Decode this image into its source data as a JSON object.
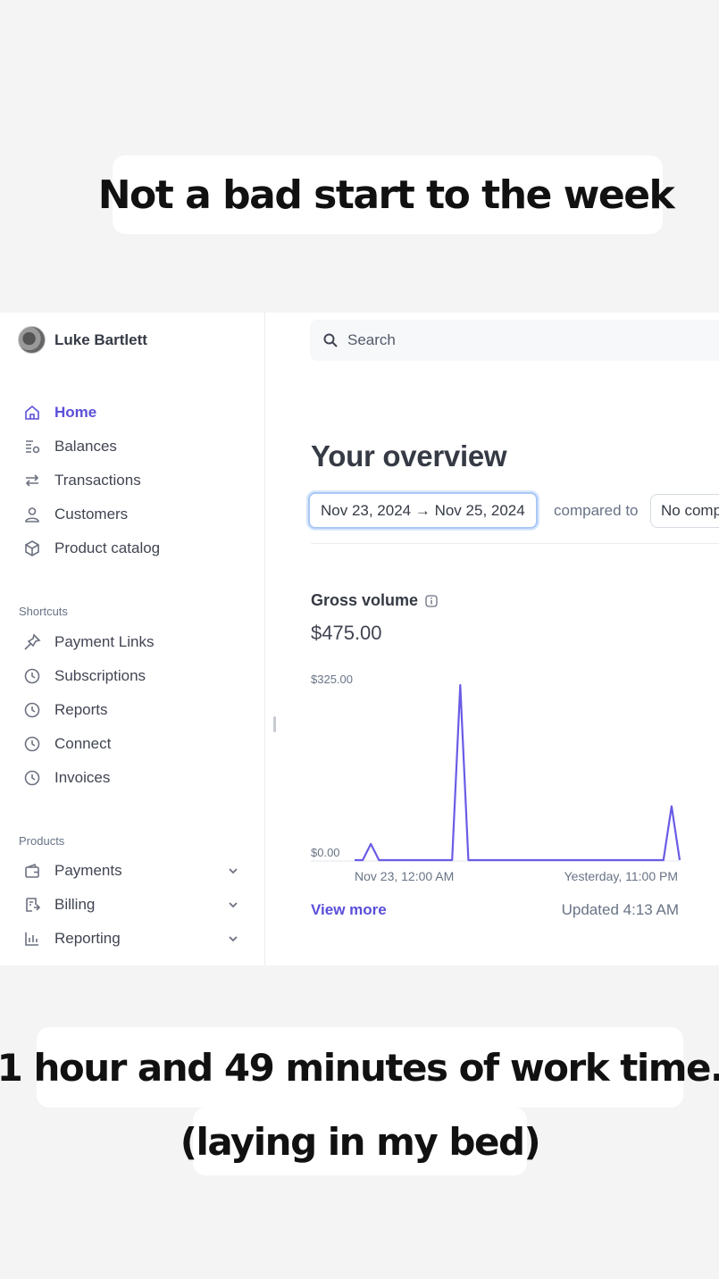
{
  "captions": {
    "top": "Not a bad start to the week",
    "bottom_line1": "1 hour and 49 minutes of work time.",
    "bottom_line2": "(laying in my bed)"
  },
  "sidebar": {
    "user_name": "Luke Bartlett",
    "main_items": [
      {
        "label": "Home",
        "icon": "home-icon",
        "active": true
      },
      {
        "label": "Balances",
        "icon": "balances-icon"
      },
      {
        "label": "Transactions",
        "icon": "transactions-icon"
      },
      {
        "label": "Customers",
        "icon": "customers-icon"
      },
      {
        "label": "Product catalog",
        "icon": "product-catalog-icon"
      }
    ],
    "shortcuts_label": "Shortcuts",
    "shortcuts": [
      {
        "label": "Payment Links",
        "icon": "pin-icon"
      },
      {
        "label": "Subscriptions",
        "icon": "clock-icon"
      },
      {
        "label": "Reports",
        "icon": "clock-icon"
      },
      {
        "label": "Connect",
        "icon": "clock-icon"
      },
      {
        "label": "Invoices",
        "icon": "clock-icon"
      }
    ],
    "products_label": "Products",
    "products": [
      {
        "label": "Payments",
        "icon": "wallet-icon"
      },
      {
        "label": "Billing",
        "icon": "billing-icon"
      },
      {
        "label": "Reporting",
        "icon": "bar-chart-icon"
      }
    ]
  },
  "search": {
    "placeholder": "Search"
  },
  "overview": {
    "title": "Your overview",
    "date_range": "Nov 23, 2024 → Nov 25, 2024",
    "compared_to": "compared to",
    "compare_value": "No comparison"
  },
  "gross_volume": {
    "title": "Gross volume",
    "value": "$475.00",
    "view_more": "View more",
    "updated": "Updated 4:13 AM"
  },
  "colors": {
    "accent": "#5b4fd9",
    "line": "#6a5ce6"
  },
  "chart_data": {
    "type": "line",
    "series": [
      {
        "values": [
          0,
          0,
          30,
          0,
          0,
          0,
          0,
          0,
          0,
          0,
          0,
          0,
          0,
          325,
          0,
          0,
          0,
          0,
          0,
          0,
          0,
          0,
          0,
          0,
          0,
          0,
          0,
          0,
          0,
          0,
          0,
          0,
          0,
          0,
          0,
          0,
          0,
          0,
          0,
          100,
          0
        ]
      }
    ],
    "y_tick_labels": [
      "$325.00",
      "$0.00"
    ],
    "x_tick_labels": [
      "Nov 23, 12:00 AM",
      "Yesterday, 11:00 PM"
    ],
    "ylim": [
      0,
      325
    ],
    "grid": false
  }
}
